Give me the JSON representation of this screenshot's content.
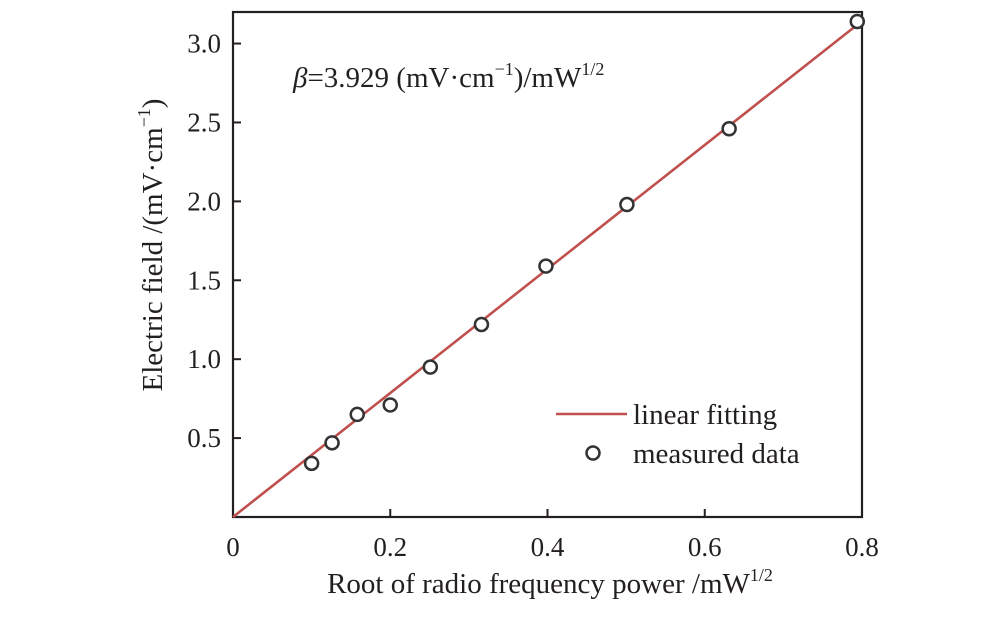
{
  "chart_data": {
    "type": "scatter",
    "xlabel": "Root of radio frequency power /mW",
    "xlabel_sup": "1/2",
    "ylabel": "Electric field /(mV·cm",
    "ylabel_sup": "−1",
    "ylabel_close": ")",
    "annotation": {
      "symbol": "β",
      "text": "=3.929 (mV·cm",
      "sup1": "−1",
      "text2": ")/mW",
      "sup2": "1/2"
    },
    "xlim": [
      0,
      0.8
    ],
    "ylim": [
      0,
      3.2
    ],
    "x_ticks": [
      0,
      0.2,
      0.4,
      0.6,
      0.8
    ],
    "x_tick_labels": [
      "0",
      "0.2",
      "0.4",
      "0.6",
      "0.8"
    ],
    "y_ticks": [
      0.5,
      1.0,
      1.5,
      2.0,
      2.5,
      3.0
    ],
    "y_tick_labels": [
      "0.5",
      "1.0",
      "1.5",
      "2.0",
      "2.5",
      "3.0"
    ],
    "series": [
      {
        "name": "linear fitting",
        "kind": "line",
        "color": "#c0504d",
        "x": [
          0,
          0.8
        ],
        "y": [
          0,
          3.143
        ]
      },
      {
        "name": "measured data",
        "kind": "markers",
        "color": "#333333",
        "x": [
          0.1,
          0.126,
          0.158,
          0.2,
          0.251,
          0.316,
          0.398,
          0.501,
          0.631,
          0.794
        ],
        "y": [
          0.34,
          0.47,
          0.65,
          0.71,
          0.95,
          1.22,
          1.59,
          1.98,
          2.46,
          3.14
        ]
      }
    ],
    "legend_position": "bottom-right",
    "grid": false
  }
}
